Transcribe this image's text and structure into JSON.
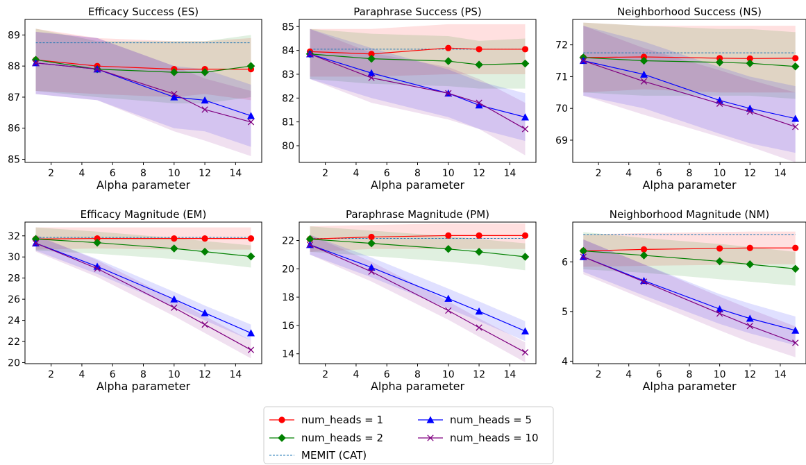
{
  "figure": {
    "x_axis_label": "Alpha parameter",
    "legend": {
      "placement": "bottom-center",
      "entries": [
        {
          "key": "h1",
          "label": "num_heads = 1"
        },
        {
          "key": "h5",
          "label": "num_heads = 5"
        },
        {
          "key": "h2",
          "label": "num_heads = 2"
        },
        {
          "key": "h10",
          "label": "num_heads = 10"
        },
        {
          "key": "memit",
          "label": "MEMIT (CAT)"
        }
      ]
    }
  },
  "series_styles": {
    "h1": {
      "color": "#ff0000",
      "marker": "circle"
    },
    "h2": {
      "color": "#008000",
      "marker": "diamond"
    },
    "h5": {
      "color": "#0000ff",
      "marker": "triangle"
    },
    "h10": {
      "color": "#800080",
      "marker": "x"
    },
    "memit": {
      "color": "#1f77b4",
      "style": "dashed"
    }
  },
  "chart_data": [
    {
      "type": "line",
      "title": "Efficacy Success (ES)",
      "xlabel": "Alpha parameter",
      "ylabel": "",
      "x": [
        1,
        5,
        10,
        12,
        15
      ],
      "xlim": [
        0.3,
        15.7
      ],
      "ylim": [
        84.9,
        89.5
      ],
      "xticks": [
        2,
        4,
        6,
        8,
        10,
        12,
        14
      ],
      "yticks": [
        85,
        86,
        87,
        88,
        89
      ],
      "grid": false,
      "series": [
        {
          "key": "h1",
          "name": "num_heads = 1",
          "values": [
            88.2,
            88.0,
            87.9,
            87.9,
            87.9
          ],
          "band_low": [
            87.2,
            87.1,
            87.0,
            87.1,
            86.9
          ],
          "band_high": [
            89.2,
            88.9,
            88.8,
            88.8,
            88.9
          ]
        },
        {
          "key": "h2",
          "name": "num_heads = 2",
          "values": [
            88.2,
            87.9,
            87.8,
            87.8,
            88.0
          ],
          "band_low": [
            87.2,
            87.0,
            86.8,
            86.8,
            87.0
          ],
          "band_high": [
            89.2,
            88.8,
            88.8,
            88.8,
            89.0
          ]
        },
        {
          "key": "h5",
          "name": "num_heads = 5",
          "values": [
            88.1,
            87.9,
            87.0,
            86.9,
            86.4
          ],
          "band_low": [
            87.1,
            86.9,
            86.0,
            85.9,
            85.4
          ],
          "band_high": [
            89.1,
            88.9,
            88.0,
            87.9,
            87.4
          ]
        },
        {
          "key": "h10",
          "name": "num_heads = 10",
          "values": [
            88.1,
            87.9,
            87.1,
            86.6,
            86.2
          ],
          "band_low": [
            87.1,
            86.9,
            85.9,
            85.6,
            85.1
          ],
          "band_high": [
            89.1,
            88.9,
            88.0,
            87.6,
            87.2
          ]
        }
      ],
      "reference": {
        "key": "memit",
        "name": "MEMIT (CAT)",
        "value": 88.75
      }
    },
    {
      "type": "line",
      "title": "Paraphrase Success (PS)",
      "xlabel": "Alpha parameter",
      "ylabel": "",
      "x": [
        1,
        5,
        10,
        12,
        15
      ],
      "xlim": [
        0.3,
        15.7
      ],
      "ylim": [
        79.3,
        85.3
      ],
      "xticks": [
        2,
        4,
        6,
        8,
        10,
        12,
        14
      ],
      "yticks": [
        80,
        81,
        82,
        83,
        84,
        85
      ],
      "grid": false,
      "series": [
        {
          "key": "h1",
          "name": "num_heads = 1",
          "values": [
            83.95,
            83.85,
            84.1,
            84.05,
            84.05
          ],
          "band_low": [
            82.9,
            82.9,
            83.0,
            83.0,
            83.0
          ],
          "band_high": [
            84.9,
            84.9,
            85.1,
            85.1,
            85.1
          ]
        },
        {
          "key": "h2",
          "name": "num_heads = 2",
          "values": [
            83.85,
            83.65,
            83.55,
            83.4,
            83.45
          ],
          "band_low": [
            82.8,
            82.6,
            82.5,
            82.4,
            82.4
          ],
          "band_high": [
            84.9,
            84.7,
            84.6,
            84.4,
            84.5
          ]
        },
        {
          "key": "h5",
          "name": "num_heads = 5",
          "values": [
            83.85,
            83.05,
            82.2,
            81.7,
            81.2
          ],
          "band_low": [
            82.8,
            82.0,
            81.2,
            80.7,
            80.2
          ],
          "band_high": [
            84.9,
            84.1,
            83.2,
            82.7,
            82.2
          ]
        },
        {
          "key": "h10",
          "name": "num_heads = 10",
          "values": [
            83.85,
            82.85,
            82.2,
            81.8,
            80.7
          ],
          "band_low": [
            82.8,
            81.8,
            81.1,
            80.7,
            79.6
          ],
          "band_high": [
            84.9,
            83.9,
            83.3,
            82.8,
            81.8
          ]
        }
      ],
      "reference": {
        "key": "memit",
        "name": "MEMIT (CAT)",
        "value": 84.05
      }
    },
    {
      "type": "line",
      "title": "Neighborhood Success (NS)",
      "xlabel": "Alpha parameter",
      "ylabel": "",
      "x": [
        1,
        5,
        10,
        12,
        15
      ],
      "xlim": [
        0.3,
        15.7
      ],
      "ylim": [
        68.3,
        72.8
      ],
      "xticks": [
        2,
        4,
        6,
        8,
        10,
        12,
        14
      ],
      "yticks": [
        69,
        70,
        71,
        72
      ],
      "grid": false,
      "series": [
        {
          "key": "h1",
          "name": "num_heads = 1",
          "values": [
            71.6,
            71.62,
            71.58,
            71.57,
            71.58
          ],
          "band_low": [
            70.5,
            70.6,
            70.5,
            70.5,
            70.5
          ],
          "band_high": [
            72.7,
            72.6,
            72.6,
            72.6,
            72.6
          ]
        },
        {
          "key": "h2",
          "name": "num_heads = 2",
          "values": [
            71.6,
            71.5,
            71.45,
            71.42,
            71.32
          ],
          "band_low": [
            70.5,
            70.4,
            70.4,
            70.4,
            70.3
          ],
          "band_high": [
            72.7,
            72.6,
            72.5,
            72.5,
            72.4
          ]
        },
        {
          "key": "h5",
          "name": "num_heads = 5",
          "values": [
            71.5,
            71.07,
            70.25,
            70.0,
            69.68
          ],
          "band_low": [
            70.4,
            70.0,
            69.2,
            68.9,
            68.6
          ],
          "band_high": [
            72.6,
            72.1,
            71.3,
            71.0,
            70.7
          ]
        },
        {
          "key": "h10",
          "name": "num_heads = 10",
          "values": [
            71.5,
            70.85,
            70.15,
            69.9,
            69.42
          ],
          "band_low": [
            70.4,
            69.8,
            69.1,
            68.8,
            68.3
          ],
          "band_high": [
            72.6,
            71.9,
            71.2,
            70.9,
            70.5
          ]
        }
      ],
      "reference": {
        "key": "memit",
        "name": "MEMIT (CAT)",
        "value": 71.75
      }
    },
    {
      "type": "line",
      "title": "Efficacy Magnitude (EM)",
      "xlabel": "Alpha parameter",
      "ylabel": "",
      "x": [
        1,
        5,
        10,
        12,
        15
      ],
      "xlim": [
        0.3,
        15.7
      ],
      "ylim": [
        19.9,
        33.3
      ],
      "xticks": [
        2,
        4,
        6,
        8,
        10,
        12,
        14
      ],
      "yticks": [
        20,
        22,
        24,
        26,
        28,
        30,
        32
      ],
      "grid": false,
      "series": [
        {
          "key": "h1",
          "name": "num_heads = 1",
          "values": [
            31.7,
            31.75,
            31.75,
            31.75,
            31.75
          ],
          "band_low": [
            30.7,
            30.8,
            30.7,
            30.7,
            30.7
          ],
          "band_high": [
            32.8,
            32.8,
            32.8,
            32.8,
            32.8
          ]
        },
        {
          "key": "h2",
          "name": "num_heads = 2",
          "values": [
            31.7,
            31.35,
            30.8,
            30.5,
            30.05
          ],
          "band_low": [
            30.6,
            30.3,
            29.8,
            29.5,
            29.0
          ],
          "band_high": [
            32.8,
            32.4,
            31.8,
            31.5,
            31.1
          ]
        },
        {
          "key": "h5",
          "name": "num_heads = 5",
          "values": [
            31.3,
            29.1,
            26.0,
            24.7,
            22.8
          ],
          "band_low": [
            30.6,
            28.4,
            25.3,
            24.0,
            22.1
          ],
          "band_high": [
            32.0,
            29.8,
            26.7,
            25.4,
            23.6
          ]
        },
        {
          "key": "h10",
          "name": "num_heads = 10",
          "values": [
            31.3,
            28.9,
            25.2,
            23.6,
            21.2
          ],
          "band_low": [
            30.5,
            28.1,
            24.4,
            22.8,
            20.4
          ],
          "band_high": [
            32.1,
            29.7,
            26.0,
            24.4,
            22.1
          ]
        }
      ],
      "reference": {
        "key": "memit",
        "name": "MEMIT (CAT)",
        "value": 31.85
      }
    },
    {
      "type": "line",
      "title": "Paraphrase Magnitude (PM)",
      "xlabel": "Alpha parameter",
      "ylabel": "",
      "x": [
        1,
        5,
        10,
        12,
        15
      ],
      "xlim": [
        0.3,
        15.7
      ],
      "ylim": [
        13.3,
        23.3
      ],
      "xticks": [
        2,
        4,
        6,
        8,
        10,
        12,
        14
      ],
      "yticks": [
        14,
        16,
        18,
        20,
        22
      ],
      "grid": false,
      "series": [
        {
          "key": "h1",
          "name": "num_heads = 1",
          "values": [
            22.1,
            22.25,
            22.35,
            22.35,
            22.35
          ],
          "band_low": [
            21.2,
            21.4,
            21.4,
            21.4,
            21.4
          ],
          "band_high": [
            23.0,
            23.1,
            23.2,
            23.2,
            23.2
          ]
        },
        {
          "key": "h2",
          "name": "num_heads = 2",
          "values": [
            22.1,
            21.8,
            21.4,
            21.2,
            20.85
          ],
          "band_low": [
            21.2,
            20.9,
            20.5,
            20.3,
            19.9
          ],
          "band_high": [
            23.0,
            22.7,
            22.3,
            22.1,
            21.8
          ]
        },
        {
          "key": "h5",
          "name": "num_heads = 5",
          "values": [
            21.7,
            20.1,
            17.9,
            17.0,
            15.6
          ],
          "band_low": [
            21.0,
            19.4,
            17.2,
            16.3,
            14.9
          ],
          "band_high": [
            22.4,
            20.8,
            18.6,
            17.7,
            16.3
          ]
        },
        {
          "key": "h10",
          "name": "num_heads = 10",
          "values": [
            21.7,
            19.8,
            17.05,
            15.85,
            14.1
          ],
          "band_low": [
            21.0,
            19.1,
            16.4,
            15.2,
            13.4
          ],
          "band_high": [
            22.4,
            20.5,
            17.7,
            16.5,
            14.8
          ]
        }
      ],
      "reference": {
        "key": "memit",
        "name": "MEMIT (CAT)",
        "value": 22.15
      }
    },
    {
      "type": "line",
      "title": "Neighborhood Magnitude (NM)",
      "xlabel": "Alpha parameter",
      "ylabel": "",
      "x": [
        1,
        5,
        10,
        12,
        15
      ],
      "xlim": [
        0.3,
        15.7
      ],
      "ylim": [
        3.95,
        6.8
      ],
      "xticks": [
        2,
        4,
        6,
        8,
        10,
        12,
        14
      ],
      "yticks": [
        4,
        5,
        6
      ],
      "grid": false,
      "series": [
        {
          "key": "h1",
          "name": "num_heads = 1",
          "values": [
            6.22,
            6.25,
            6.27,
            6.28,
            6.28
          ],
          "band_low": [
            5.9,
            5.92,
            5.94,
            5.95,
            5.95
          ],
          "band_high": [
            6.55,
            6.58,
            6.6,
            6.61,
            6.61
          ]
        },
        {
          "key": "h2",
          "name": "num_heads = 2",
          "values": [
            6.22,
            6.13,
            6.01,
            5.95,
            5.86
          ],
          "band_low": [
            5.85,
            5.78,
            5.65,
            5.6,
            5.52
          ],
          "band_high": [
            6.6,
            6.48,
            6.36,
            6.3,
            6.2
          ]
        },
        {
          "key": "h5",
          "name": "num_heads = 5",
          "values": [
            6.1,
            5.62,
            5.05,
            4.86,
            4.62
          ],
          "band_low": [
            5.8,
            5.32,
            4.75,
            4.56,
            4.32
          ],
          "band_high": [
            6.45,
            5.95,
            5.35,
            5.16,
            4.9
          ]
        },
        {
          "key": "h10",
          "name": "num_heads = 10",
          "values": [
            6.1,
            5.6,
            4.96,
            4.71,
            4.37
          ],
          "band_low": [
            5.75,
            5.25,
            4.62,
            4.38,
            4.08
          ],
          "band_high": [
            6.45,
            5.95,
            5.3,
            5.05,
            4.7
          ]
        }
      ],
      "reference": {
        "key": "memit",
        "name": "MEMIT (CAT)",
        "value": 6.55
      }
    }
  ]
}
